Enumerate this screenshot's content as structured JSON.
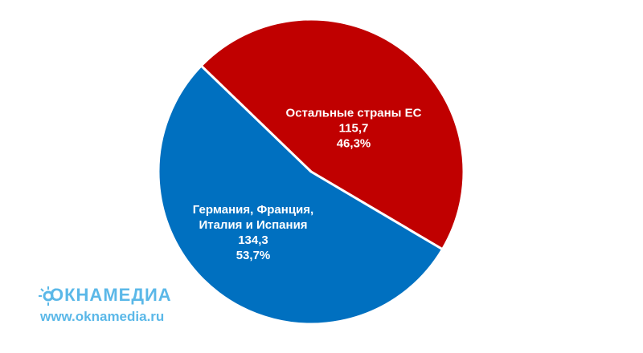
{
  "chart_data": {
    "type": "pie",
    "categories": [
      "Остальные страны ЕС",
      "Германия, Франция, Италия и Испания"
    ],
    "values": [
      115.7,
      134.3
    ],
    "value_labels": [
      "115,7",
      "134,3"
    ],
    "percents": [
      46.3,
      53.7
    ],
    "percent_labels": [
      "46,3%",
      "53,7%"
    ],
    "colors": [
      "#c00000",
      "#0070c0"
    ]
  },
  "watermark": {
    "brand": "ОКНАМЕДИА",
    "url": "www.oknamedia.ru"
  }
}
